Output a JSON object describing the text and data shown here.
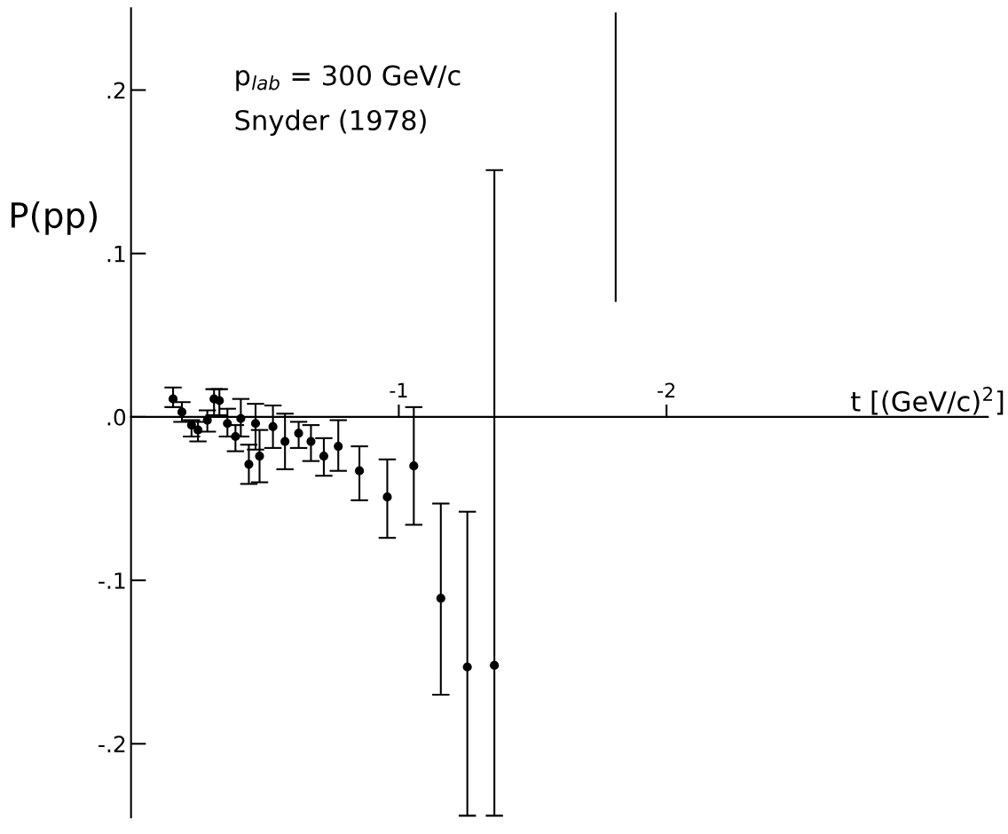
{
  "chart_data": {
    "type": "scatter",
    "xlabel": "t [(GeV/c)$^{2}$]",
    "ylabel": "P(pp)",
    "annotations": [
      "p$_{lab}$ = 300 GeV/c",
      "Snyder (1978)"
    ],
    "xlim": [
      0,
      -3.2
    ],
    "ylim": [
      -0.245,
      0.25
    ],
    "xticks": [
      -1,
      -2
    ],
    "yticks": [
      {
        "value": 0.2,
        "label": ".2"
      },
      {
        "value": 0.1,
        "label": ".1"
      },
      {
        "value": 0,
        "label": ".0"
      },
      {
        "value": -0.1,
        "label": "-.1"
      },
      {
        "value": -0.2,
        "label": "-.2"
      }
    ],
    "grid": false,
    "marker": "circle",
    "series": [
      {
        "color": "#000000",
        "x": [
          -0.157,
          -0.19,
          -0.226,
          -0.25,
          -0.285,
          -0.31,
          -0.33,
          -0.36,
          -0.39,
          -0.41,
          -0.44,
          -0.465,
          -0.48,
          -0.53,
          -0.575,
          -0.626,
          -0.672,
          -0.72,
          -0.774,
          -0.853,
          -0.957,
          -1.056,
          -1.157,
          -1.256,
          -1.357
        ],
        "values": [
          0.011,
          0.003,
          -0.005,
          -0.008,
          -0.002,
          0.011,
          0.01,
          -0.004,
          -0.012,
          -0.001,
          -0.029,
          -0.004,
          -0.024,
          -0.006,
          -0.015,
          -0.01,
          -0.015,
          -0.024,
          -0.018,
          -0.033,
          -0.049,
          -0.03,
          -0.111,
          -0.153,
          -0.152
        ],
        "errors": [
          [
            0.006,
            0.018
          ],
          [
            -0.003,
            0.009
          ],
          [
            -0.012,
            -0.002
          ],
          [
            -0.015,
            -0.003
          ],
          [
            -0.009,
            0.004
          ],
          [
            0.001,
            0.017
          ],
          [
            0.001,
            0.017
          ],
          [
            -0.012,
            0.005
          ],
          [
            -0.021,
            -0.005
          ],
          [
            -0.012,
            0.011
          ],
          [
            -0.041,
            -0.017
          ],
          [
            -0.02,
            0.008
          ],
          [
            -0.04,
            -0.008
          ],
          [
            -0.019,
            0.007
          ],
          [
            -0.032,
            0.002
          ],
          [
            -0.019,
            -0.003
          ],
          [
            -0.027,
            -0.005
          ],
          [
            -0.036,
            -0.013
          ],
          [
            -0.033,
            -0.002
          ],
          [
            -0.051,
            -0.018
          ],
          [
            -0.074,
            -0.026
          ],
          [
            -0.066,
            0.006
          ],
          [
            -0.17,
            -0.053
          ],
          [
            -0.244,
            -0.058
          ],
          [
            -0.244,
            0.151
          ]
        ]
      },
      {
        "type": "line",
        "color": "#000000",
        "marker": "none",
        "x": [
          -1.81,
          -1.81
        ],
        "values": [
          0.071,
          0.247
        ]
      }
    ]
  }
}
